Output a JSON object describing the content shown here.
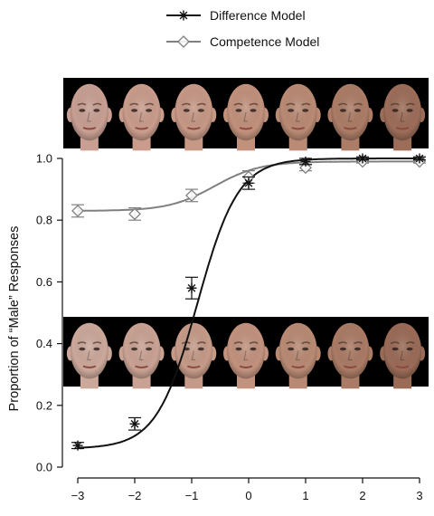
{
  "chart_data": {
    "type": "line",
    "title": "",
    "xlabel": "",
    "ylabel": "Proportion of “Male” Responses",
    "xlim": [
      -3,
      3
    ],
    "ylim": [
      0,
      1
    ],
    "xticks": [
      -3,
      -2,
      -1,
      0,
      1,
      2,
      3
    ],
    "yticks": [
      0.0,
      0.2,
      0.4,
      0.6,
      0.8,
      1.0
    ],
    "xtick_labels": [
      "−3",
      "−2",
      "−1",
      "0",
      "1",
      "2",
      "3"
    ],
    "ytick_labels": [
      "0.0",
      "0.2",
      "0.4",
      "0.6",
      "0.8",
      "1.0"
    ],
    "grid": false,
    "legend_position": "top-center",
    "x": [
      -3,
      -2,
      -1,
      0,
      1,
      2,
      3
    ],
    "series": [
      {
        "name": "Difference Model",
        "marker": "asterisk",
        "color": "#111111",
        "values": [
          0.07,
          0.14,
          0.58,
          0.92,
          0.99,
          1.0,
          1.0
        ],
        "error": [
          0.01,
          0.02,
          0.035,
          0.02,
          0.01,
          0.005,
          0.005
        ],
        "fit": {
          "type": "logistic",
          "lower": 0.06,
          "upper": 1.0,
          "midpoint": -0.9,
          "slope": 2.8
        }
      },
      {
        "name": "Competence Model",
        "marker": "diamond",
        "color": "#808080",
        "values": [
          0.83,
          0.82,
          0.88,
          0.94,
          0.97,
          0.99,
          0.99
        ],
        "error": [
          0.02,
          0.02,
          0.02,
          0.02,
          0.01,
          0.005,
          0.005
        ],
        "fit": {
          "type": "logistic",
          "lower": 0.83,
          "upper": 0.99,
          "midpoint": -0.6,
          "slope": 2.5
        }
      }
    ],
    "face_strips": [
      {
        "name": "top-face-strip",
        "count": 7,
        "skin_colors": [
          "#c89f92",
          "#c99c8c",
          "#c69886",
          "#c1917c",
          "#b98a74",
          "#ab7c66",
          "#9c6d59"
        ]
      },
      {
        "name": "middle-face-strip",
        "count": 7,
        "skin_colors": [
          "#cba89a",
          "#c9a293",
          "#c59a88",
          "#c1927e",
          "#b88a74",
          "#aa7b65",
          "#9a6b57"
        ]
      }
    ]
  }
}
